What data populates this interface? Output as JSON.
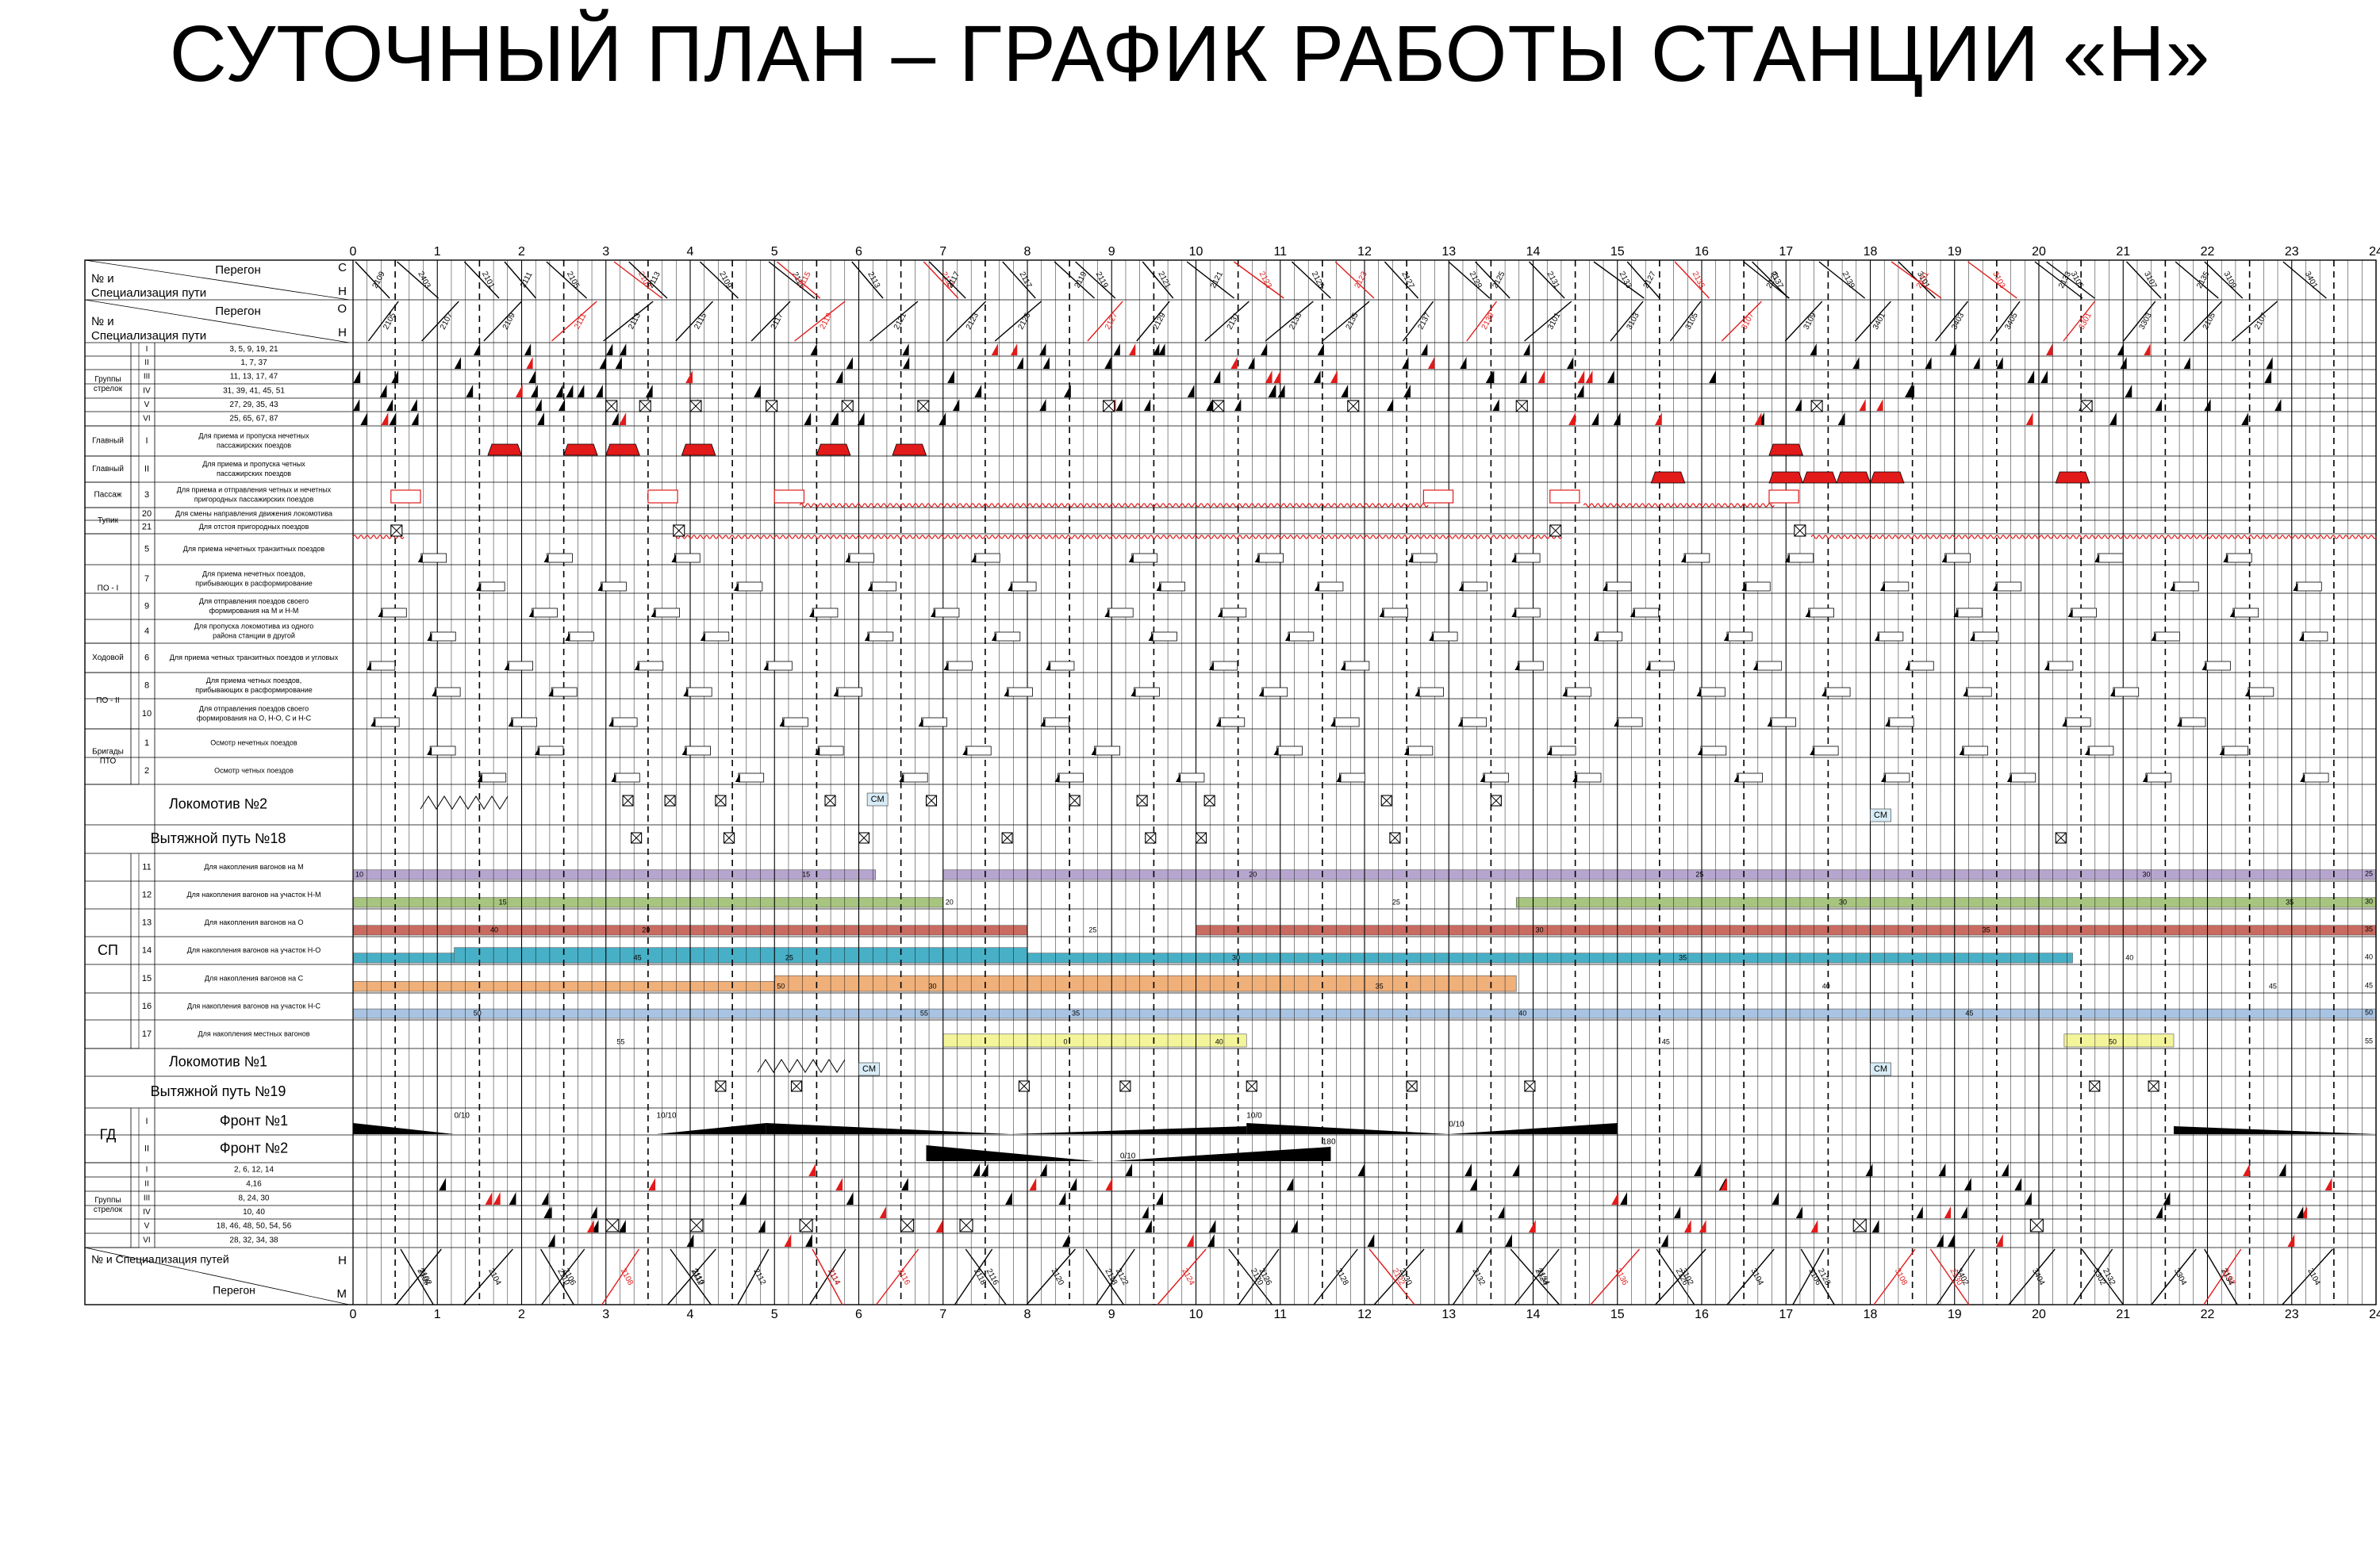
{
  "title": "СУТОЧНЫЙ ПЛАН – ГРАФИК РАБОТЫ СТАНЦИИ «Н»",
  "hours": [
    "0",
    "1",
    "2",
    "3",
    "4",
    "5",
    "6",
    "7",
    "8",
    "9",
    "10",
    "11",
    "12",
    "13",
    "14",
    "15",
    "16",
    "17",
    "18",
    "19",
    "20",
    "21",
    "22",
    "23",
    "24"
  ],
  "colors": {
    "purple": "#b6a6cf",
    "green": "#a7c57f",
    "red": "#c96b60",
    "cyan": "#47b0c6",
    "orange": "#f0b07a",
    "blue": "#a9c4e2",
    "yellow": "#f4f59a",
    "accent_red": "#e21a1a",
    "black": "#000000"
  },
  "header": {
    "peregon_label": "Перегон",
    "track_label_1": "№ и",
    "track_label_2": "Специализация пути",
    "dir_s": "С",
    "dir_n": "Н",
    "dir_o": "О",
    "dir_n2": "Н"
  },
  "sections": {
    "gruppy": "Группы стрелок",
    "glavny": "Главный",
    "passazh": "Пассаж",
    "tupik": "Тупик",
    "po1": "ПО - I",
    "khodovoy": "Ходовой",
    "po2": "ПО - II",
    "brigady": "Бригады ПТО",
    "sp": "СП",
    "gd": "ГД",
    "gruppy2": "Группы стрелок"
  },
  "rows_top": [
    {
      "num": "I",
      "desc": "3, 5, 9, 19, 21",
      "group": "gruppy"
    },
    {
      "num": "II",
      "desc": "1, 7, 37",
      "group": "gruppy"
    },
    {
      "num": "III",
      "desc": "11, 13, 17, 47",
      "group": "gruppy"
    },
    {
      "num": "IV",
      "desc": "31, 39, 41, 45, 51",
      "group": "gruppy"
    },
    {
      "num": "V",
      "desc": "27, 29, 35, 43",
      "group": "gruppy"
    },
    {
      "num": "VI",
      "desc": "25, 65, 67, 87",
      "group": "gruppy"
    }
  ],
  "rows_mid": [
    {
      "num": "I",
      "desc": "Для приема и пропуска нечетных пассажирских поездов"
    },
    {
      "num": "II",
      "desc": "Для приема и пропуска четных пассажирских поездов"
    },
    {
      "num": "3",
      "desc": "Для приема и отправления четных и нечетных пригородных пассажирских поездов"
    },
    {
      "num": "20",
      "desc": "Для смены направления движения локомотива"
    },
    {
      "num": "21",
      "desc": "Для отстоя пригородных поездов"
    },
    {
      "num": "5",
      "desc": "Для приема нечетных транзитных поездов"
    },
    {
      "num": "7",
      "desc": "Для приема нечетных поездов, прибывающих в расформирование"
    },
    {
      "num": "9",
      "desc": "Для отправления поездов своего формирования на М и Н-М"
    },
    {
      "num": "4",
      "desc": "Для пропуска локомотива из одного района станции в другой"
    },
    {
      "num": "6",
      "desc": "Для приема четных транзитных поездов и угловых"
    },
    {
      "num": "8",
      "desc": "Для приема четных поездов, прибывающих в расформирование"
    },
    {
      "num": "10",
      "desc": "Для отправления поездов своего формирования на О, Н-О, С и Н-С"
    },
    {
      "num": "1",
      "desc": "Осмотр нечетных поездов"
    },
    {
      "num": "2",
      "desc": "Осмотр четных поездов"
    }
  ],
  "loco2": "Локомотив №2",
  "vyt18": "Вытяжной путь №18",
  "sp_rows": [
    {
      "num": "11",
      "desc": "Для накопления вагонов на М"
    },
    {
      "num": "12",
      "desc": "Для накопления вагонов на участок Н-М"
    },
    {
      "num": "13",
      "desc": "Для накопления вагонов на О"
    },
    {
      "num": "14",
      "desc": "Для накопления вагонов на участок Н-О"
    },
    {
      "num": "15",
      "desc": "Для накопления вагонов на С"
    },
    {
      "num": "16",
      "desc": "Для накопления вагонов на участок Н-С"
    },
    {
      "num": "17",
      "desc": "Для накопления местных вагонов"
    }
  ],
  "loco1": "Локомотив №1",
  "vyt19": "Вытяжной путь №19",
  "gd_rows": [
    {
      "num": "I",
      "desc": "Фронт №1"
    },
    {
      "num": "II",
      "desc": "Фронт №2"
    }
  ],
  "rows_bottom": [
    {
      "num": "I",
      "desc": "2, 6, 12, 14"
    },
    {
      "num": "II",
      "desc": "4,16"
    },
    {
      "num": "III",
      "desc": "8, 24, 30"
    },
    {
      "num": "IV",
      "desc": "10, 40"
    },
    {
      "num": "V",
      "desc": "18, 46, 48, 50, 54, 56"
    },
    {
      "num": "VI",
      "desc": "28, 32, 34, 38"
    }
  ],
  "footer": {
    "track_label": "№ и  Специализация путей",
    "peregon_label": "Перегон",
    "dir_n": "Н",
    "dir_m": "М"
  },
  "train_labels_top": [
    "2403",
    "2101",
    "2105",
    "2107",
    "2109",
    "2111",
    "2113",
    "2115",
    "2117",
    "2119",
    "2121",
    "2123",
    "2125",
    "2127",
    "2129",
    "2131",
    "2133",
    "2135",
    "2137",
    "2139",
    "3101",
    "3103",
    "3105",
    "3107",
    "3109",
    "3401",
    "3403",
    "3405",
    "3301",
    "3303"
  ],
  "train_labels_bottom": [
    "2102",
    "2104",
    "2106",
    "2108",
    "2110",
    "2112",
    "2114",
    "2116",
    "2118",
    "2120",
    "2122",
    "2124",
    "2126",
    "2128",
    "2130",
    "2132",
    "2134",
    "2136",
    "3102",
    "3104",
    "3106",
    "3108",
    "3402",
    "3404",
    "3302",
    "3304"
  ],
  "sp_markers": [
    "10",
    "15",
    "20",
    "25",
    "30",
    "35",
    "40",
    "45",
    "50",
    "55",
    "0",
    "5"
  ],
  "misc_labels": {
    "cm": "СМ",
    "fr_10_10": "10/10",
    "fr_0_10": "0/10",
    "fr_10_0": "10/0",
    "fr_180": "180"
  }
}
